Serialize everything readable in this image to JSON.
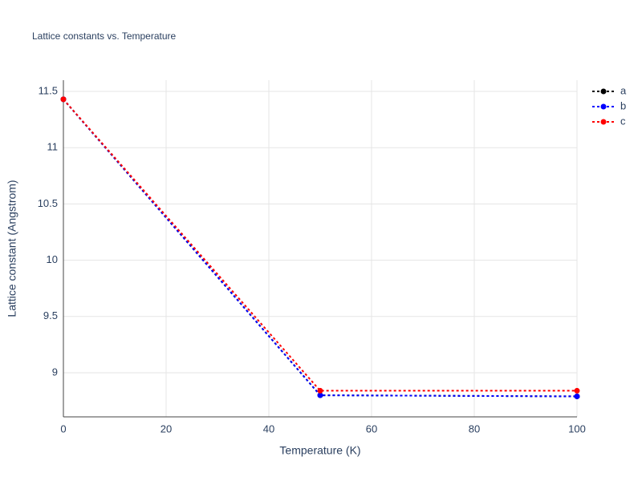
{
  "chart_data": {
    "type": "line",
    "title": "Lattice constants vs. Temperature",
    "x_label": "Temperature (K)",
    "y_label": "Lattice constant (Angstrom)",
    "x": [
      0,
      50,
      100
    ],
    "series": [
      {
        "name": "a",
        "color": "#000000",
        "values": [
          11.43,
          8.8,
          8.79
        ]
      },
      {
        "name": "b",
        "color": "#0000ff",
        "values": [
          11.43,
          8.8,
          8.79
        ]
      },
      {
        "name": "c",
        "color": "#ff0000",
        "values": [
          11.43,
          8.84,
          8.84
        ]
      }
    ],
    "xlim": [
      0,
      100
    ],
    "xticks": [
      0,
      20,
      40,
      60,
      80,
      100
    ],
    "ylim": [
      8.608,
      11.6
    ],
    "yticks": [
      9,
      9.5,
      10,
      10.5,
      11,
      11.5
    ],
    "grid": true,
    "legend": "top-right",
    "line_style": "dotted"
  }
}
